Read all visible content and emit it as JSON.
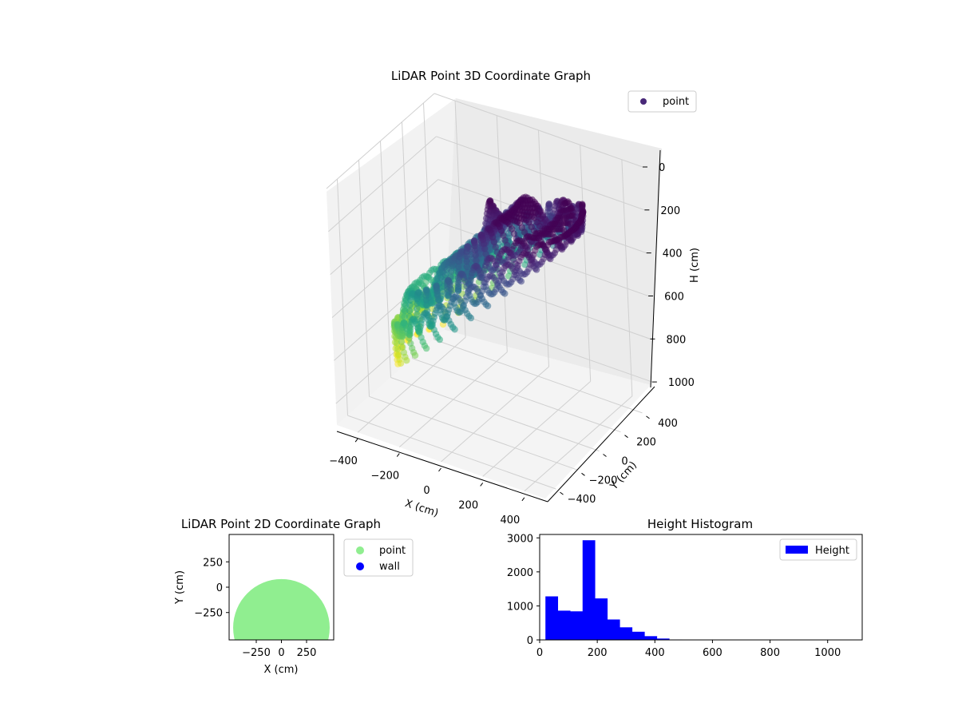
{
  "figure": {
    "background": "#ffffff",
    "colors": {
      "pane_left": "#f2f2f2",
      "pane_right": "#ebebeb",
      "pane_floor": "#f4f4f4",
      "grid": "#d0d0d0",
      "axis": "#000000"
    }
  },
  "chart_data": [
    {
      "type": "scatter",
      "projection": "3d",
      "title": "LiDAR Point 3D Coordinate Graph",
      "xlabel": "X (cm)",
      "ylabel": "Y (cm)",
      "zlabel": "H (cm)",
      "xlim": [
        -500,
        500
      ],
      "ylim": [
        -500,
        500
      ],
      "zlim": [
        0,
        1100
      ],
      "z_inverted": true,
      "xticks": [
        "−400",
        "−200",
        "0",
        "200",
        "400"
      ],
      "yticks": [
        "−400",
        "−200",
        "0",
        "200",
        "400"
      ],
      "zticks": [
        "0",
        "200",
        "400",
        "600",
        "800",
        "1000"
      ],
      "colormap": "viridis",
      "legend": {
        "label": "point",
        "color": "#482878",
        "placement": "top-right"
      },
      "shape": "spiral dome",
      "grid": true,
      "radius_max": 420,
      "height_range": [
        100,
        900
      ]
    },
    {
      "type": "scatter",
      "title": "LiDAR Point 2D Coordinate Graph",
      "xlabel": "X (cm)",
      "ylabel": "Y (cm)",
      "xlim": [
        -520,
        520
      ],
      "ylim": [
        -520,
        520
      ],
      "xticks": [
        "−250",
        "0",
        "250"
      ],
      "yticks": [
        "−250",
        "0",
        "250"
      ],
      "series": [
        {
          "name": "point",
          "color": "#90ee90",
          "region": "disc",
          "radius": 480,
          "center": [
            0,
            -400
          ]
        },
        {
          "name": "wall",
          "color": "#0000ff",
          "points": []
        }
      ],
      "legend_placement": "outside-right"
    },
    {
      "type": "bar",
      "title": "Height Histogram",
      "series_name": "Height",
      "color": "#0000ff",
      "xlim": [
        0,
        1120
      ],
      "ylim": [
        0,
        3100
      ],
      "xticks": [
        "0",
        "200",
        "400",
        "600",
        "800",
        "1000"
      ],
      "yticks": [
        "0",
        "1000",
        "2000",
        "3000"
      ],
      "bin_edges": [
        20,
        63,
        106,
        149,
        192,
        235,
        278,
        321,
        364,
        407,
        450,
        493,
        536,
        579,
        622,
        665,
        708,
        751,
        794,
        837,
        880,
        923,
        966,
        1009,
        1052,
        1095
      ],
      "counts": [
        1280,
        860,
        840,
        2930,
        1220,
        600,
        370,
        240,
        110,
        40,
        12,
        5,
        3,
        2,
        1,
        1,
        0,
        0,
        0,
        0,
        0,
        0,
        0,
        0,
        1
      ],
      "legend_placement": "top-right"
    }
  ]
}
